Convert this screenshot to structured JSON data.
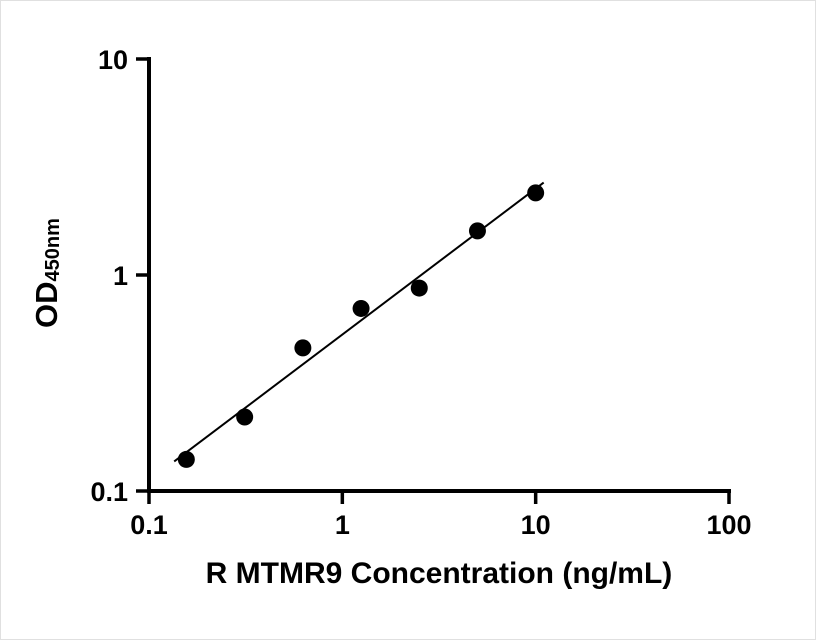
{
  "chart_data": {
    "type": "scatter",
    "title": "",
    "xlabel": "R MTMR9 Concentration (ng/mL)",
    "ylabel_main": "OD",
    "ylabel_sub": "450nm",
    "xscale": "log",
    "yscale": "log",
    "xlim": [
      0.1,
      100
    ],
    "ylim": [
      0.1,
      10
    ],
    "xticks": [
      0.1,
      1,
      10,
      100
    ],
    "xtick_labels": [
      "0.1",
      "1",
      "10",
      "100"
    ],
    "yticks": [
      0.1,
      1,
      10
    ],
    "ytick_labels": [
      "0.1",
      "1",
      "10"
    ],
    "grid": "off",
    "legend": "none",
    "points": [
      {
        "x": 0.156,
        "y": 0.14
      },
      {
        "x": 0.3125,
        "y": 0.22
      },
      {
        "x": 0.625,
        "y": 0.46
      },
      {
        "x": 1.25,
        "y": 0.7
      },
      {
        "x": 2.5,
        "y": 0.87
      },
      {
        "x": 5,
        "y": 1.6
      },
      {
        "x": 10,
        "y": 2.4
      }
    ],
    "trend_line": {
      "x1": 0.135,
      "y1": 0.137,
      "x2": 11,
      "y2": 2.68
    },
    "marker": {
      "shape": "circle",
      "color": "#000000",
      "radius": 8.5
    },
    "line_color": "#000000",
    "axis_color": "#000000",
    "background": "#ffffff"
  }
}
